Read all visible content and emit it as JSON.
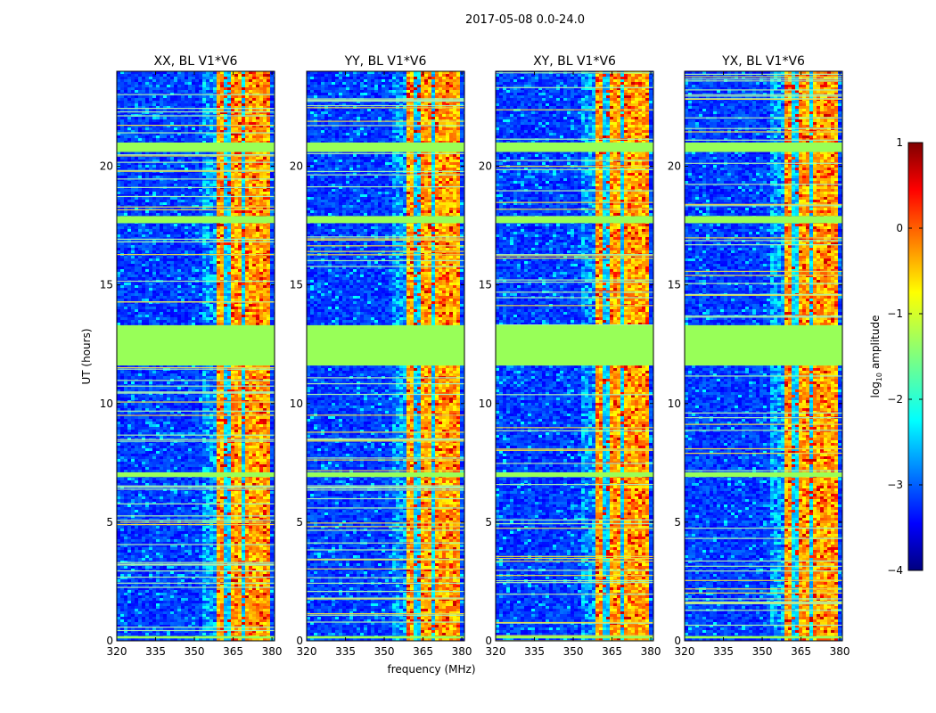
{
  "figure_title": "2017-05-08 0.0-24.0",
  "chart_data": {
    "type": "heatmap",
    "colormap": "jet",
    "shared": {
      "xlabel": "frequency (MHz)",
      "ylabel": "UT (hours)",
      "xlim": [
        320,
        381
      ],
      "ylim": [
        0,
        24
      ],
      "xticks": [
        320,
        335,
        350,
        365,
        380
      ],
      "yticks": [
        0,
        5,
        10,
        15,
        20
      ],
      "rfi_band_mhz": [
        358,
        378
      ],
      "flagged_ut_hours": [
        [
          11.6,
          13.3
        ],
        [
          17.6,
          17.9
        ],
        [
          20.6,
          21.0
        ],
        [
          6.9,
          7.1
        ],
        [
          0.1,
          0.2
        ]
      ]
    },
    "panels": [
      {
        "title": "XX, BL V1*V6",
        "seed": 11
      },
      {
        "title": "YY, BL V1*V6",
        "seed": 23
      },
      {
        "title": "XY, BL V1*V6",
        "seed": 37
      },
      {
        "title": "YX, BL V1*V6",
        "seed": 53
      }
    ],
    "colorbar": {
      "label": "log",
      "label_sub": "10",
      "label_suffix": " amplitude",
      "range": [
        -4,
        1
      ],
      "ticks": [
        1,
        0,
        -1,
        -2,
        -3,
        -4
      ],
      "tick_labels": [
        "1",
        "0",
        "−1",
        "−2",
        "−3",
        "−4"
      ]
    }
  }
}
